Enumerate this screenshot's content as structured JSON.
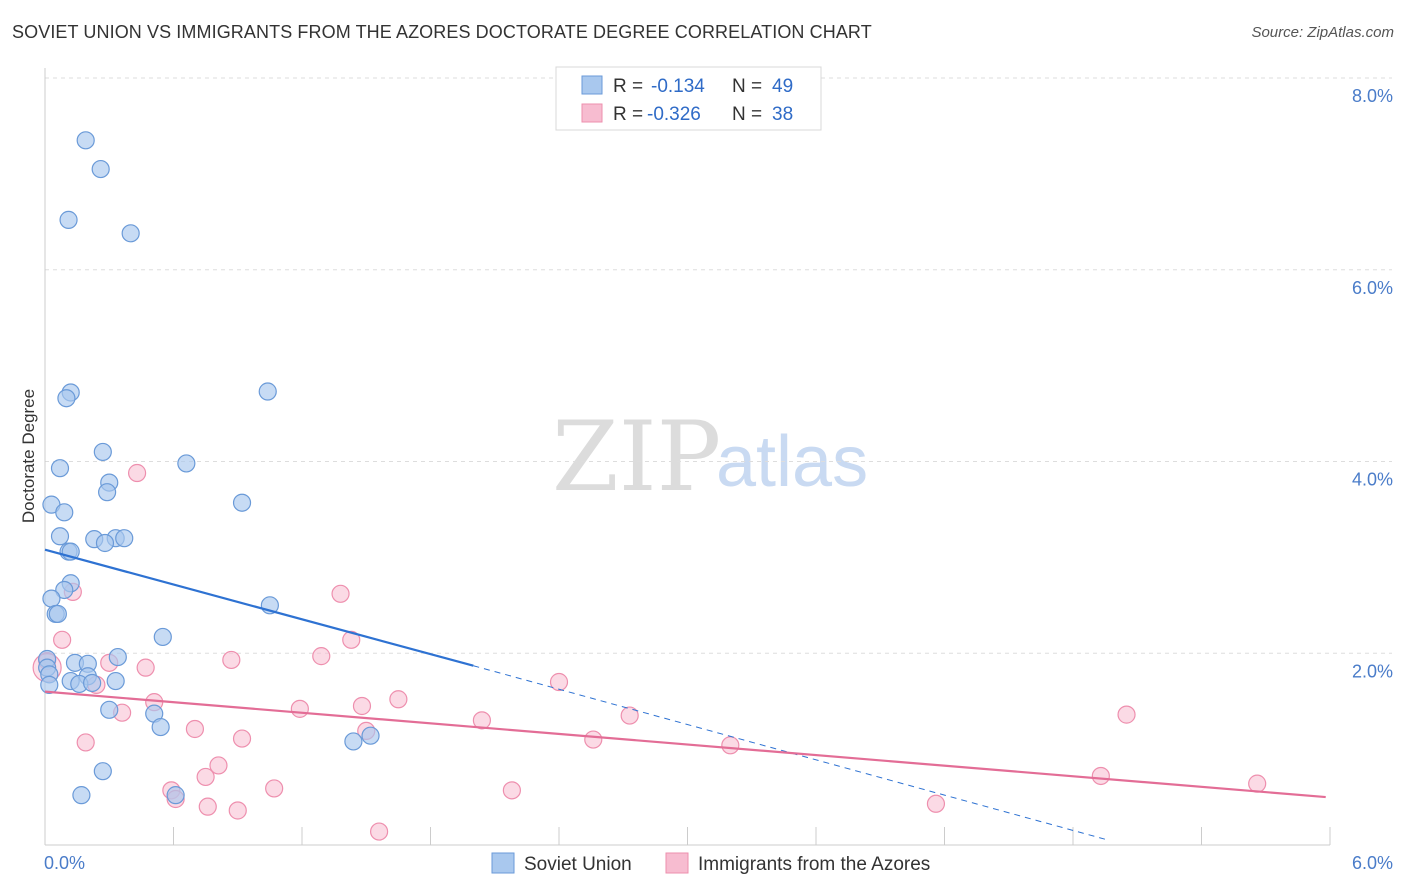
{
  "header": {
    "title": "SOVIET UNION VS IMMIGRANTS FROM THE AZORES DOCTORATE DEGREE CORRELATION CHART",
    "source": "Source: ZipAtlas.com"
  },
  "watermark": {
    "zip": "ZIP",
    "atlas": "atlas"
  },
  "colors": {
    "blue_fill": "#a9c8ee",
    "blue_stroke": "#6a9ad8",
    "blue_line": "#2e72d2",
    "pink_fill": "#f7bcd0",
    "pink_stroke": "#ee8fae",
    "pink_line": "#e36d96",
    "tick_label": "#4a7cc9",
    "grid": "#dddddd"
  },
  "legend": {
    "series1": {
      "r_label": "R =",
      "r_value": "-0.134",
      "n_label": "N =",
      "n_value": "49"
    },
    "series2": {
      "r_label": "R =",
      "r_value": "-0.326",
      "n_label": "N =",
      "n_value": "38"
    }
  },
  "chart_data": {
    "type": "scatter",
    "title": "SOVIET UNION VS IMMIGRANTS FROM THE AZORES DOCTORATE DEGREE CORRELATION CHART",
    "xlabel": "",
    "ylabel": "Doctorate Degree",
    "xlim": [
      0,
      6
    ],
    "ylim": [
      0,
      8
    ],
    "x_tick_labels": [
      "0.0%",
      "6.0%"
    ],
    "y_ticks": [
      2,
      4,
      6,
      8
    ],
    "y_tick_labels": [
      "2.0%",
      "4.0%",
      "6.0%",
      "8.0%"
    ],
    "grid": true,
    "legend_position": "top-center",
    "series": [
      {
        "name": "Soviet Union",
        "r": -0.134,
        "n": 49,
        "trend": {
          "x0": 0.0,
          "y0": 3.08,
          "x1": 2.0,
          "y1": 1.87,
          "dashed_to_x": 4.95,
          "dashed_to_y": 0.06
        },
        "points": [
          [
            0.19,
            7.35
          ],
          [
            0.26,
            7.05
          ],
          [
            0.11,
            6.52
          ],
          [
            0.4,
            6.38
          ],
          [
            0.12,
            4.72
          ],
          [
            0.1,
            4.66
          ],
          [
            1.04,
            4.73
          ],
          [
            0.27,
            4.1
          ],
          [
            0.07,
            3.93
          ],
          [
            0.66,
            3.98
          ],
          [
            0.3,
            3.78
          ],
          [
            0.29,
            3.68
          ],
          [
            0.03,
            3.55
          ],
          [
            0.09,
            3.47
          ],
          [
            0.92,
            3.57
          ],
          [
            0.07,
            3.22
          ],
          [
            0.23,
            3.19
          ],
          [
            0.33,
            3.2
          ],
          [
            0.37,
            3.2
          ],
          [
            0.28,
            3.15
          ],
          [
            0.11,
            3.06
          ],
          [
            0.12,
            3.06
          ],
          [
            0.12,
            2.73
          ],
          [
            0.09,
            2.66
          ],
          [
            0.03,
            2.57
          ],
          [
            0.05,
            2.41
          ],
          [
            0.06,
            2.41
          ],
          [
            1.05,
            2.5
          ],
          [
            0.55,
            2.17
          ],
          [
            0.34,
            1.96
          ],
          [
            0.01,
            1.94
          ],
          [
            0.14,
            1.9
          ],
          [
            0.2,
            1.89
          ],
          [
            0.01,
            1.85
          ],
          [
            0.02,
            1.78
          ],
          [
            0.2,
            1.76
          ],
          [
            0.12,
            1.71
          ],
          [
            0.33,
            1.71
          ],
          [
            0.16,
            1.68
          ],
          [
            0.02,
            1.67
          ],
          [
            0.22,
            1.69
          ],
          [
            0.3,
            1.41
          ],
          [
            0.51,
            1.37
          ],
          [
            0.54,
            1.23
          ],
          [
            1.44,
            1.08
          ],
          [
            1.52,
            1.14
          ],
          [
            0.27,
            0.77
          ],
          [
            0.17,
            0.52
          ],
          [
            0.61,
            0.52
          ]
        ]
      },
      {
        "name": "Immigrants from the Azores",
        "r": -0.326,
        "n": 38,
        "trend": {
          "x0": 0.0,
          "y0": 1.6,
          "x1": 5.98,
          "y1": 0.5
        },
        "points": [
          [
            0.43,
            3.88
          ],
          [
            1.38,
            2.62
          ],
          [
            0.13,
            2.64
          ],
          [
            0.08,
            2.14
          ],
          [
            1.43,
            2.14
          ],
          [
            0.01,
            1.92
          ],
          [
            0.87,
            1.93
          ],
          [
            1.29,
            1.97
          ],
          [
            0.3,
            1.9
          ],
          [
            0.47,
            1.85
          ],
          [
            0.24,
            1.67
          ],
          [
            2.4,
            1.7
          ],
          [
            0.51,
            1.49
          ],
          [
            1.65,
            1.52
          ],
          [
            0.36,
            1.38
          ],
          [
            1.19,
            1.42
          ],
          [
            1.48,
            1.45
          ],
          [
            2.73,
            1.35
          ],
          [
            2.04,
            1.3
          ],
          [
            0.7,
            1.21
          ],
          [
            5.05,
            1.36
          ],
          [
            1.5,
            1.19
          ],
          [
            0.92,
            1.11
          ],
          [
            0.19,
            1.07
          ],
          [
            2.56,
            1.1
          ],
          [
            3.2,
            1.04
          ],
          [
            0.81,
            0.83
          ],
          [
            0.75,
            0.71
          ],
          [
            4.93,
            0.72
          ],
          [
            0.59,
            0.57
          ],
          [
            0.61,
            0.48
          ],
          [
            1.07,
            0.59
          ],
          [
            2.18,
            0.57
          ],
          [
            5.66,
            0.64
          ],
          [
            0.76,
            0.4
          ],
          [
            0.9,
            0.36
          ],
          [
            4.16,
            0.43
          ],
          [
            1.56,
            0.14
          ]
        ]
      }
    ]
  }
}
